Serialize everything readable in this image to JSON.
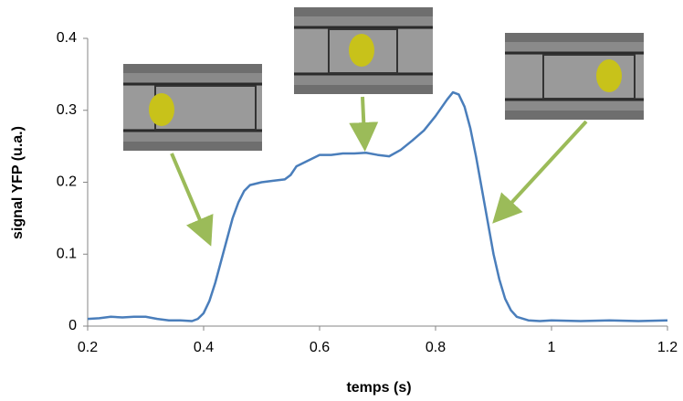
{
  "chart_data": {
    "type": "line",
    "x_label": "temps (s)",
    "y_label": "signal YFP (u.a.)",
    "xlim": [
      0.2,
      1.2
    ],
    "xticks": [
      0.2,
      0.4,
      0.6,
      0.8,
      1,
      1.2
    ],
    "ylim": [
      0,
      0.4
    ],
    "yticks": [
      0,
      0.1,
      0.2,
      0.3,
      0.4
    ],
    "grid": false,
    "series": [
      {
        "name": "signal YFP",
        "color": "#4a7ebb",
        "x": [
          0.2,
          0.22,
          0.24,
          0.26,
          0.28,
          0.3,
          0.32,
          0.34,
          0.36,
          0.38,
          0.39,
          0.4,
          0.41,
          0.42,
          0.43,
          0.44,
          0.45,
          0.46,
          0.47,
          0.48,
          0.5,
          0.52,
          0.54,
          0.55,
          0.56,
          0.58,
          0.6,
          0.62,
          0.64,
          0.66,
          0.68,
          0.7,
          0.72,
          0.74,
          0.76,
          0.78,
          0.8,
          0.82,
          0.83,
          0.84,
          0.85,
          0.86,
          0.87,
          0.88,
          0.89,
          0.9,
          0.91,
          0.92,
          0.93,
          0.94,
          0.96,
          0.98,
          1.0,
          1.05,
          1.1,
          1.15,
          1.2
        ],
        "values": [
          0.01,
          0.011,
          0.013,
          0.012,
          0.013,
          0.013,
          0.01,
          0.008,
          0.008,
          0.007,
          0.01,
          0.018,
          0.035,
          0.06,
          0.09,
          0.12,
          0.15,
          0.172,
          0.188,
          0.196,
          0.2,
          0.202,
          0.204,
          0.21,
          0.222,
          0.23,
          0.238,
          0.238,
          0.24,
          0.24,
          0.241,
          0.238,
          0.236,
          0.245,
          0.258,
          0.272,
          0.292,
          0.315,
          0.325,
          0.322,
          0.305,
          0.275,
          0.235,
          0.19,
          0.145,
          0.1,
          0.065,
          0.038,
          0.022,
          0.013,
          0.008,
          0.007,
          0.008,
          0.007,
          0.008,
          0.007,
          0.008
        ]
      }
    ]
  }
}
